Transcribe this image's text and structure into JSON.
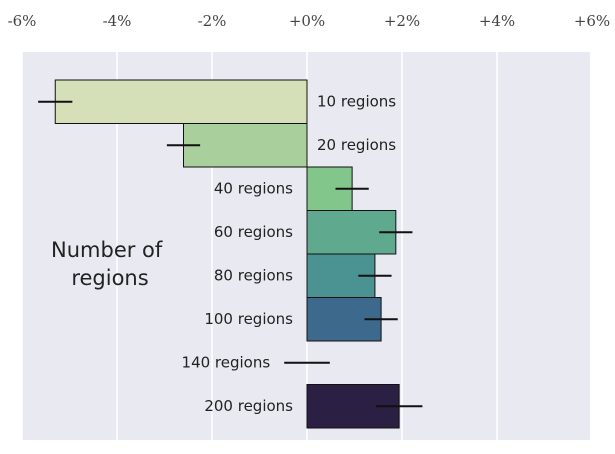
{
  "chart_data": {
    "type": "bar",
    "orientation": "horizontal",
    "categories": [
      "10 regions",
      "20 regions",
      "40 regions",
      "60 regions",
      "80 regions",
      "100 regions",
      "140 regions",
      "200 regions"
    ],
    "values": [
      -5.3,
      -2.6,
      0.95,
      1.87,
      1.43,
      1.56,
      0.0,
      1.94
    ],
    "errors": [
      0.36,
      0.35,
      0.35,
      0.35,
      0.35,
      0.35,
      0.48,
      0.49
    ],
    "colors": [
      "#d5dfb8",
      "#a9d09c",
      "#82c68c",
      "#5fa98f",
      "#4a9392",
      "#3d6a8c",
      "#3b4a7a",
      "#2b2043"
    ],
    "ylabel": [
      "Number of",
      "regions"
    ],
    "xlim": [
      -6,
      6
    ],
    "xticks": [
      {
        "value": -6,
        "label": "-6%"
      },
      {
        "value": -4,
        "label": "-4%"
      },
      {
        "value": -2,
        "label": "-2%"
      },
      {
        "value": 0,
        "label": "+0%"
      },
      {
        "value": 2,
        "label": "+2%"
      },
      {
        "value": 4,
        "label": "+4%"
      },
      {
        "value": 6,
        "label": "+6%"
      }
    ],
    "grid": true
  }
}
